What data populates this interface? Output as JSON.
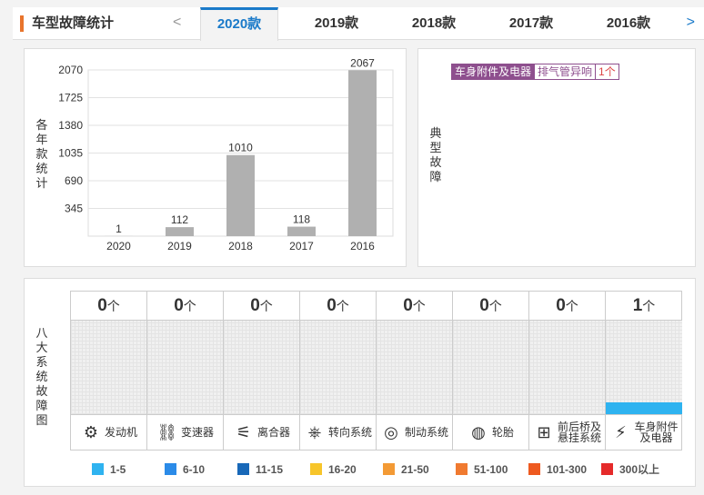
{
  "header": {
    "title": "车型故障统计",
    "prev": "<",
    "next": ">",
    "tabs": [
      "2020款",
      "2019款",
      "2018款",
      "2017款",
      "2016款"
    ],
    "active_tab": "2020款"
  },
  "year_chart": {
    "side_label": [
      "各",
      "年",
      "款",
      "统",
      "计"
    ],
    "y_ticks": [
      "2070",
      "1725",
      "1380",
      "1035",
      "690",
      "345"
    ],
    "bar_color": "#b0b0b0"
  },
  "chart_data": {
    "type": "bar",
    "categories": [
      "2020",
      "2019",
      "2018",
      "2017",
      "2016"
    ],
    "values": [
      1,
      112,
      1010,
      118,
      2067
    ],
    "ylim": [
      0,
      2070
    ],
    "yticks": [
      345,
      690,
      1035,
      1380,
      1725,
      2070
    ],
    "grid": true
  },
  "typical": {
    "side_label": [
      "典",
      "型",
      "故",
      "障"
    ],
    "tags": [
      "车身附件及电器",
      "排气管异响",
      "1个"
    ],
    "accent": "#8e4f8e"
  },
  "systems": {
    "side_label": [
      "八",
      "大",
      "系",
      "统",
      "故",
      "障",
      "图"
    ],
    "unit": "个",
    "items": [
      {
        "name": "发动机",
        "count": "0",
        "level": 0,
        "icon": "engine-icon",
        "glyph": "⚙"
      },
      {
        "name": "变速器",
        "count": "0",
        "level": 0,
        "icon": "gear-shift-icon",
        "glyph": "⛓"
      },
      {
        "name": "离合器",
        "count": "0",
        "level": 0,
        "icon": "clutch-icon",
        "glyph": "⚟"
      },
      {
        "name": "转向系统",
        "count": "0",
        "level": 0,
        "icon": "steering-wheel-icon",
        "glyph": "⎈"
      },
      {
        "name": "制动系统",
        "count": "0",
        "level": 0,
        "icon": "brake-icon",
        "glyph": "◎"
      },
      {
        "name": "轮胎",
        "count": "0",
        "level": 0,
        "icon": "tire-icon",
        "glyph": "◍"
      },
      {
        "name": "前后桥及悬挂系统",
        "name_lines": [
          "前后桥及",
          "悬挂系统"
        ],
        "count": "0",
        "level": 0,
        "icon": "axle-icon",
        "glyph": "⊞"
      },
      {
        "name": "车身附件及电器",
        "name_lines": [
          "车身附件",
          "及电器"
        ],
        "count": "1",
        "level": 0.1,
        "icon": "battery-icon",
        "glyph": "⚡"
      }
    ],
    "fill_color": "#2fb3f0"
  },
  "legend": [
    {
      "label": "1-5",
      "color": "#2fb3f0"
    },
    {
      "label": "6-10",
      "color": "#2b8be8"
    },
    {
      "label": "11-15",
      "color": "#1868b8"
    },
    {
      "label": "16-20",
      "color": "#f7c52a"
    },
    {
      "label": "21-50",
      "color": "#f39a35"
    },
    {
      "label": "51-100",
      "color": "#f07a30"
    },
    {
      "label": "101-300",
      "color": "#ee5a20"
    },
    {
      "label": "300以上",
      "color": "#e52a2a"
    }
  ]
}
